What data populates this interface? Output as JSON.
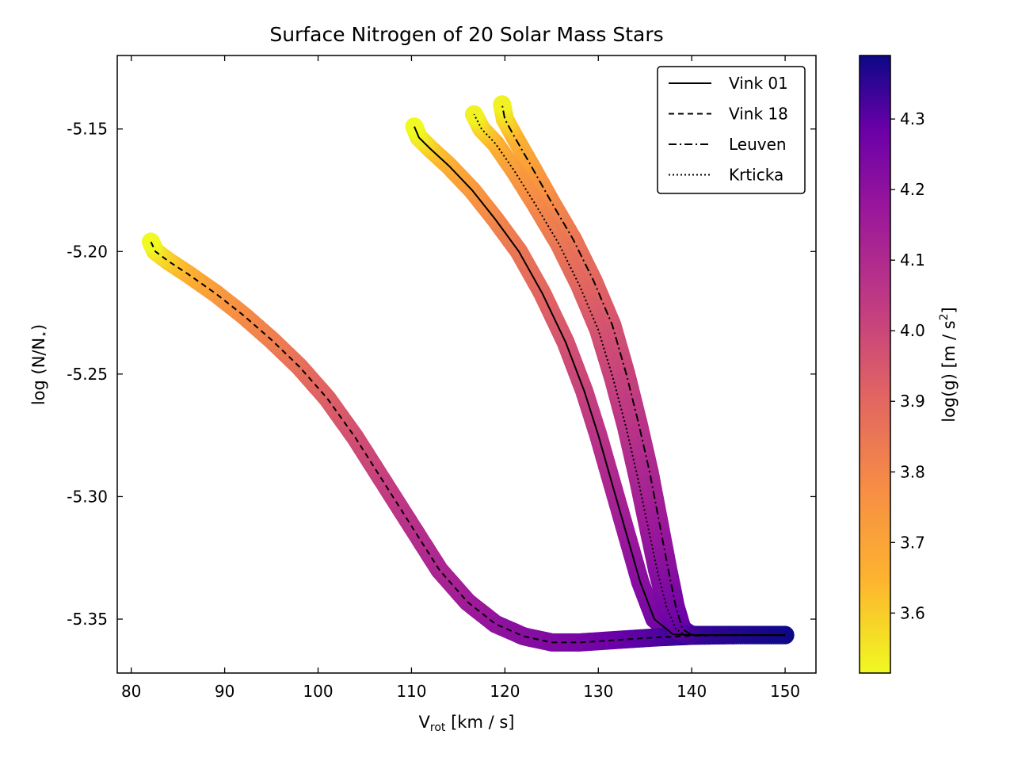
{
  "chart_data": {
    "type": "scatter",
    "title": "Surface Nitrogen of 20 Solar Mass Stars",
    "xlabel": "V",
    "xlabel_sub": "rot",
    "xlabel_unit": " [km / s]",
    "ylabel": "log (N/N",
    "ylabel_sub": "⋆",
    "ylabel_end": ")",
    "colorbar_label": "log(g) [m / s",
    "colorbar_label_sup": "2",
    "colorbar_label_end": "]",
    "colormap": "plasma",
    "colorbar_range": [
      3.515,
      4.39
    ],
    "colorbar_ticks": [
      "3.6",
      "3.7",
      "3.8",
      "3.9",
      "4.0",
      "4.1",
      "4.2",
      "4.3"
    ],
    "xlim": [
      78.5,
      153.3
    ],
    "ylim": [
      -5.372,
      -5.12
    ],
    "xticks": [
      "80",
      "90",
      "100",
      "110",
      "120",
      "130",
      "140",
      "150"
    ],
    "yticks": [
      "-5.15",
      "-5.20",
      "-5.25",
      "-5.30",
      "-5.35"
    ],
    "legend_position": "upper right",
    "series": [
      {
        "name": "Vink 01",
        "linestyle": "solid",
        "points": [
          [
            150.0,
            -5.3565,
            4.39
          ],
          [
            145.0,
            -5.3565,
            4.37
          ],
          [
            141.0,
            -5.3565,
            4.34
          ],
          [
            138.0,
            -5.3562,
            4.3
          ],
          [
            136.0,
            -5.35,
            4.26
          ],
          [
            134.5,
            -5.335,
            4.22
          ],
          [
            133.0,
            -5.315,
            4.17
          ],
          [
            131.5,
            -5.295,
            4.12
          ],
          [
            130.0,
            -5.275,
            4.07
          ],
          [
            128.5,
            -5.257,
            4.02
          ],
          [
            126.5,
            -5.237,
            3.97
          ],
          [
            124.0,
            -5.217,
            3.91
          ],
          [
            121.5,
            -5.2,
            3.86
          ],
          [
            119.0,
            -5.187,
            3.81
          ],
          [
            116.5,
            -5.175,
            3.75
          ],
          [
            114.0,
            -5.165,
            3.68
          ],
          [
            112.0,
            -5.158,
            3.61
          ],
          [
            110.8,
            -5.1535,
            3.55
          ],
          [
            110.3,
            -5.149,
            3.515
          ]
        ]
      },
      {
        "name": "Vink 18",
        "linestyle": "dashed",
        "points": [
          [
            150.0,
            -5.3565,
            4.39
          ],
          [
            145.0,
            -5.3565,
            4.37
          ],
          [
            140.0,
            -5.3568,
            4.35
          ],
          [
            136.0,
            -5.3575,
            4.32
          ],
          [
            132.0,
            -5.3585,
            4.29
          ],
          [
            128.0,
            -5.3595,
            4.26
          ],
          [
            125.0,
            -5.3595,
            4.24
          ],
          [
            122.0,
            -5.357,
            4.22
          ],
          [
            119.0,
            -5.352,
            4.2
          ],
          [
            116.0,
            -5.343,
            4.16
          ],
          [
            113.0,
            -5.33,
            4.12
          ],
          [
            110.0,
            -5.312,
            4.08
          ],
          [
            107.0,
            -5.294,
            4.03
          ],
          [
            104.0,
            -5.276,
            3.98
          ],
          [
            101.0,
            -5.26,
            3.93
          ],
          [
            98.0,
            -5.247,
            3.88
          ],
          [
            95.0,
            -5.236,
            3.83
          ],
          [
            92.0,
            -5.226,
            3.79
          ],
          [
            89.0,
            -5.217,
            3.74
          ],
          [
            86.0,
            -5.209,
            3.67
          ],
          [
            84.0,
            -5.204,
            3.61
          ],
          [
            82.6,
            -5.2,
            3.56
          ],
          [
            82.1,
            -5.196,
            3.515
          ]
        ]
      },
      {
        "name": "Leuven",
        "linestyle": "dashdot",
        "points": [
          [
            150.0,
            -5.3565,
            4.39
          ],
          [
            145.0,
            -5.3565,
            4.37
          ],
          [
            142.0,
            -5.3565,
            4.35
          ],
          [
            140.0,
            -5.3565,
            4.33
          ],
          [
            139.0,
            -5.354,
            4.3
          ],
          [
            138.3,
            -5.345,
            4.27
          ],
          [
            137.5,
            -5.33,
            4.22
          ],
          [
            136.5,
            -5.31,
            4.17
          ],
          [
            135.5,
            -5.29,
            4.12
          ],
          [
            134.3,
            -5.27,
            4.07
          ],
          [
            133.0,
            -5.25,
            4.02
          ],
          [
            131.5,
            -5.23,
            3.97
          ],
          [
            129.5,
            -5.212,
            3.91
          ],
          [
            127.3,
            -5.195,
            3.86
          ],
          [
            125.0,
            -5.18,
            3.8
          ],
          [
            122.8,
            -5.165,
            3.73
          ],
          [
            121.0,
            -5.153,
            3.66
          ],
          [
            120.0,
            -5.146,
            3.59
          ],
          [
            119.7,
            -5.14,
            3.53
          ]
        ]
      },
      {
        "name": "Krticka",
        "linestyle": "dotted",
        "points": [
          [
            150.0,
            -5.3565,
            4.39
          ],
          [
            145.0,
            -5.3565,
            4.37
          ],
          [
            141.0,
            -5.3565,
            4.35
          ],
          [
            139.3,
            -5.3565,
            4.33
          ],
          [
            138.3,
            -5.354,
            4.3
          ],
          [
            137.3,
            -5.345,
            4.26
          ],
          [
            136.3,
            -5.33,
            4.22
          ],
          [
            135.3,
            -5.312,
            4.17
          ],
          [
            134.2,
            -5.292,
            4.12
          ],
          [
            133.0,
            -5.272,
            4.07
          ],
          [
            131.6,
            -5.252,
            4.02
          ],
          [
            130.0,
            -5.232,
            3.97
          ],
          [
            128.0,
            -5.214,
            3.91
          ],
          [
            125.8,
            -5.197,
            3.86
          ],
          [
            123.3,
            -5.181,
            3.8
          ],
          [
            121.0,
            -5.167,
            3.74
          ],
          [
            119.0,
            -5.156,
            3.67
          ],
          [
            117.5,
            -5.15,
            3.6
          ],
          [
            116.7,
            -5.144,
            3.53
          ]
        ]
      }
    ]
  }
}
